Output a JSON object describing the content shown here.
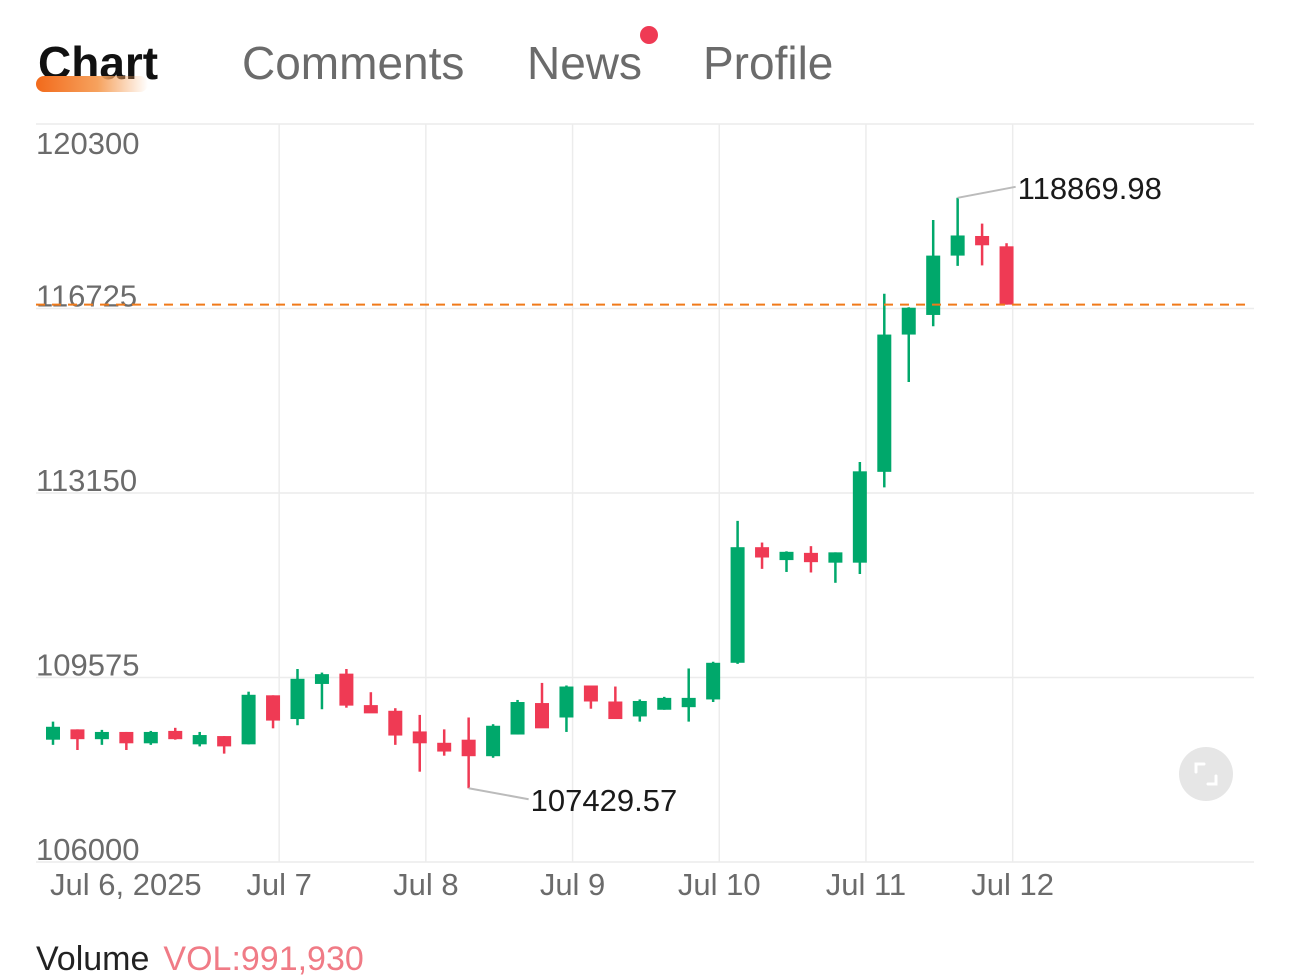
{
  "tabs": [
    {
      "label": "Chart",
      "active": true
    },
    {
      "label": "Comments",
      "active": false
    },
    {
      "label": "News",
      "active": false,
      "notification_dot": true
    },
    {
      "label": "Profile",
      "active": false
    }
  ],
  "colors": {
    "up": "#00a86b",
    "down": "#ef3a54",
    "current_price_line": "#f07a1a",
    "grid": "#ececec",
    "axis_text": "#6b6b6b",
    "notification_dot": "#ef3a54"
  },
  "volume": {
    "label": "Volume",
    "value": "VOL:991,930"
  },
  "icons": {
    "expand": "expand-icon"
  },
  "chart_data": {
    "type": "candlestick",
    "title": "",
    "xlabel": "",
    "ylabel": "",
    "ylim": [
      106000,
      120300
    ],
    "yticks": [
      106000,
      109575,
      113150,
      116725,
      120300
    ],
    "ytick_labels": [
      "106000",
      "109575",
      "113150",
      "116725",
      "120300"
    ],
    "x_tick_labels": [
      "Jul 6, 2025",
      "Jul 7",
      "Jul 8",
      "Jul 9",
      "Jul 10",
      "Jul 11",
      "Jul 12"
    ],
    "x_tick_slots": [
      3.25,
      9.25,
      15.25,
      21.25,
      27.25,
      33.25,
      39.25
    ],
    "grid": true,
    "current_price": 116800,
    "annotations": [
      {
        "label": "118869.98",
        "slot": 37,
        "value": 118869.98,
        "type": "high"
      },
      {
        "label": "107429.57",
        "slot": 17,
        "value": 107429.57,
        "type": "low"
      }
    ],
    "candles": [
      {
        "o": 108370,
        "h": 108720,
        "l": 108270,
        "c": 108620
      },
      {
        "o": 108570,
        "h": 108570,
        "l": 108170,
        "c": 108380
      },
      {
        "o": 108380,
        "h": 108560,
        "l": 108270,
        "c": 108520
      },
      {
        "o": 108520,
        "h": 108520,
        "l": 108170,
        "c": 108300
      },
      {
        "o": 108300,
        "h": 108540,
        "l": 108270,
        "c": 108520
      },
      {
        "o": 108540,
        "h": 108600,
        "l": 108370,
        "c": 108380
      },
      {
        "o": 108280,
        "h": 108520,
        "l": 108240,
        "c": 108460
      },
      {
        "o": 108440,
        "h": 108440,
        "l": 108100,
        "c": 108240
      },
      {
        "o": 108280,
        "h": 109300,
        "l": 108280,
        "c": 109240
      },
      {
        "o": 109230,
        "h": 109230,
        "l": 108590,
        "c": 108740
      },
      {
        "o": 108770,
        "h": 109740,
        "l": 108650,
        "c": 109550
      },
      {
        "o": 109450,
        "h": 109670,
        "l": 108960,
        "c": 109640
      },
      {
        "o": 109650,
        "h": 109740,
        "l": 108990,
        "c": 109030
      },
      {
        "o": 109040,
        "h": 109290,
        "l": 108890,
        "c": 108880
      },
      {
        "o": 108930,
        "h": 108980,
        "l": 108270,
        "c": 108450
      },
      {
        "o": 108530,
        "h": 108850,
        "l": 107750,
        "c": 108300
      },
      {
        "o": 108310,
        "h": 108570,
        "l": 108060,
        "c": 108140
      },
      {
        "o": 108370,
        "h": 108800,
        "l": 107429.57,
        "c": 108050
      },
      {
        "o": 108050,
        "h": 108670,
        "l": 108020,
        "c": 108640
      },
      {
        "o": 108470,
        "h": 109140,
        "l": 108470,
        "c": 109100
      },
      {
        "o": 109080,
        "h": 109470,
        "l": 108600,
        "c": 108590
      },
      {
        "o": 108800,
        "h": 109420,
        "l": 108520,
        "c": 109400
      },
      {
        "o": 109420,
        "h": 109420,
        "l": 108970,
        "c": 109110
      },
      {
        "o": 109110,
        "h": 109400,
        "l": 108860,
        "c": 108770
      },
      {
        "o": 108820,
        "h": 109150,
        "l": 108720,
        "c": 109120
      },
      {
        "o": 108950,
        "h": 109200,
        "l": 108950,
        "c": 109180
      },
      {
        "o": 109000,
        "h": 109750,
        "l": 108720,
        "c": 109180
      },
      {
        "o": 109150,
        "h": 109880,
        "l": 109100,
        "c": 109860
      },
      {
        "o": 109860,
        "h": 112610,
        "l": 109840,
        "c": 112100
      },
      {
        "o": 112100,
        "h": 112190,
        "l": 111680,
        "c": 111900
      },
      {
        "o": 111850,
        "h": 112020,
        "l": 111620,
        "c": 112010
      },
      {
        "o": 111990,
        "h": 112120,
        "l": 111610,
        "c": 111810
      },
      {
        "o": 111800,
        "h": 112000,
        "l": 111410,
        "c": 112000
      },
      {
        "o": 111800,
        "h": 113750,
        "l": 111580,
        "c": 113570
      },
      {
        "o": 113560,
        "h": 117010,
        "l": 113260,
        "c": 116220
      },
      {
        "o": 116220,
        "h": 116750,
        "l": 115300,
        "c": 116740
      },
      {
        "o": 116600,
        "h": 118440,
        "l": 116380,
        "c": 117750
      },
      {
        "o": 117750,
        "h": 118869.98,
        "l": 117550,
        "c": 118140
      },
      {
        "o": 118130,
        "h": 118370,
        "l": 117560,
        "c": 117950
      },
      {
        "o": 117930,
        "h": 117990,
        "l": 116800,
        "c": 116800
      }
    ]
  }
}
